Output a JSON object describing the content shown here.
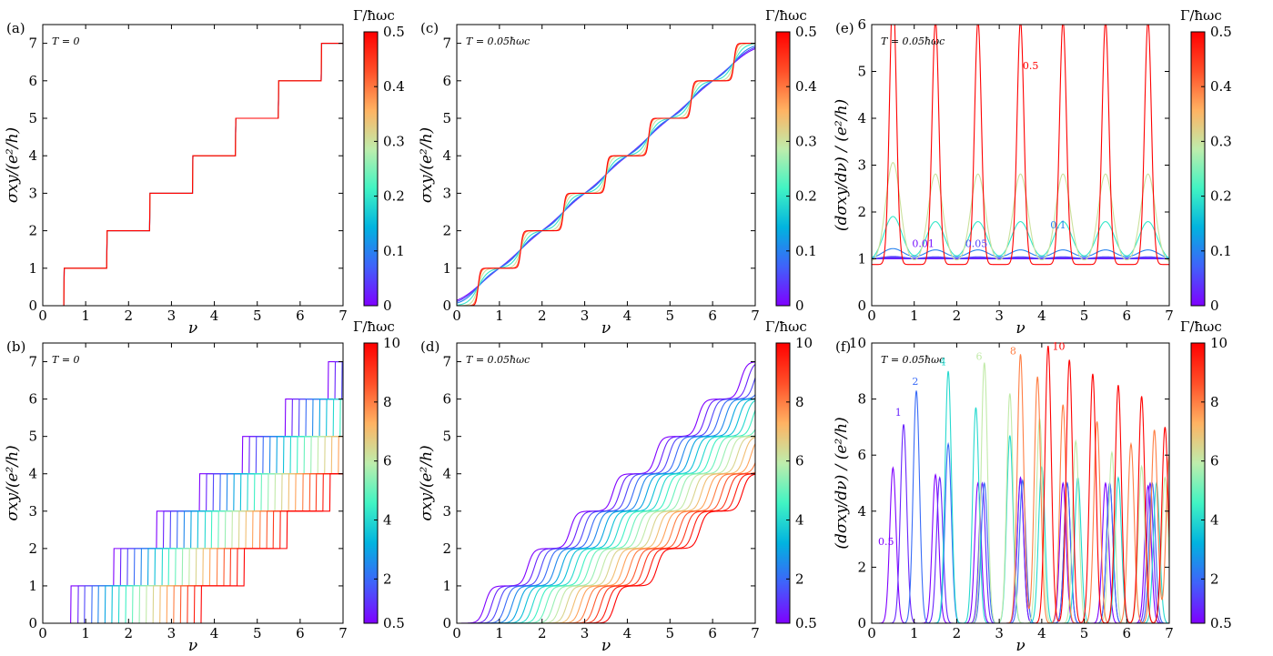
{
  "colormap": [
    "#7f00ff",
    "#4062fa",
    "#01b3df",
    "#41f4c3",
    "#beedac",
    "#ffb262",
    "#ff4f28",
    "#ff0000"
  ],
  "panels": [
    {
      "id": "a",
      "label": "(a)",
      "condition": "T = 0",
      "ylabel": "σxy/(e²/h)",
      "xlabel": "ν",
      "kind": "sigma",
      "temperature": 0,
      "gamma_values": [
        0.01,
        0.05,
        0.1,
        0.2,
        0.3,
        0.4,
        0.5
      ],
      "xlim": [
        0,
        7
      ],
      "ylim": [
        0,
        7.5
      ],
      "xticks": [
        0,
        1,
        2,
        3,
        4,
        5,
        6,
        7
      ],
      "yticks": [
        0,
        1,
        2,
        3,
        4,
        5,
        6,
        7
      ],
      "colorbar": {
        "title": "Γ/ħωc",
        "min": 0,
        "max": 0.5,
        "ticks": [
          "0",
          "0.1",
          "0.2",
          "0.3",
          "0.4",
          "0.5"
        ]
      }
    },
    {
      "id": "c",
      "label": "(c)",
      "condition": "T = 0.05ħωc",
      "ylabel": "σxy/(e²/h)",
      "xlabel": "ν",
      "kind": "sigma",
      "temperature": 0.05,
      "gamma_values": [
        0.01,
        0.05,
        0.1,
        0.2,
        0.3,
        0.4,
        0.5
      ],
      "xlim": [
        0,
        7
      ],
      "ylim": [
        0,
        7.5
      ],
      "xticks": [
        0,
        1,
        2,
        3,
        4,
        5,
        6,
        7
      ],
      "yticks": [
        0,
        1,
        2,
        3,
        4,
        5,
        6,
        7
      ],
      "colorbar": {
        "title": "Γ/ħωc",
        "min": 0,
        "max": 0.5,
        "ticks": [
          "0",
          "0.1",
          "0.2",
          "0.3",
          "0.4",
          "0.5"
        ]
      }
    },
    {
      "id": "e",
      "label": "(e)",
      "condition": "T = 0.05ħωc",
      "ylabel": "(dσxy/dν) / (e²/h)",
      "xlabel": "ν",
      "kind": "deriv",
      "temperature": 0.05,
      "gamma_values": [
        0.01,
        0.02,
        0.03,
        0.04,
        0.05,
        0.1,
        0.2,
        0.3,
        0.5
      ],
      "xlim": [
        0,
        7
      ],
      "ylim": [
        0,
        6
      ],
      "xticks": [
        0,
        1,
        2,
        3,
        4,
        5,
        6,
        7
      ],
      "yticks": [
        0,
        1,
        2,
        3,
        4,
        5,
        6
      ],
      "annotations": [
        "0.5",
        "0.1",
        "0.05",
        "0.01"
      ],
      "colorbar": {
        "title": "Γ/ħωc",
        "min": 0,
        "max": 0.5,
        "ticks": [
          "0",
          "0.1",
          "0.2",
          "0.3",
          "0.4",
          "0.5"
        ]
      }
    },
    {
      "id": "b",
      "label": "(b)",
      "condition": "T = 0",
      "ylabel": "σxy/(e²/h)",
      "xlabel": "ν",
      "kind": "sigma",
      "temperature": 0,
      "gamma_values": [
        0.5,
        1,
        1.5,
        2,
        2.5,
        3,
        3.5,
        4,
        4.5,
        5,
        5.5,
        6,
        6.5,
        7,
        7.5,
        8,
        8.5,
        9,
        9.5,
        10
      ],
      "xlim": [
        0,
        7
      ],
      "ylim": [
        0,
        7.5
      ],
      "xticks": [
        0,
        1,
        2,
        3,
        4,
        5,
        6,
        7
      ],
      "yticks": [
        0,
        1,
        2,
        3,
        4,
        5,
        6,
        7
      ],
      "colorbar": {
        "title": "Γ/ħωc",
        "min": 0.5,
        "max": 10,
        "ticks": [
          "0.5",
          "2",
          "4",
          "6",
          "8",
          "10"
        ]
      }
    },
    {
      "id": "d",
      "label": "(d)",
      "condition": "T = 0.05ħωc",
      "ylabel": "σxy/(e²/h)",
      "xlabel": "ν",
      "kind": "sigma",
      "temperature": 0.05,
      "gamma_values": [
        0.5,
        1,
        1.5,
        2,
        2.5,
        3,
        3.5,
        4,
        4.5,
        5,
        5.5,
        6,
        6.5,
        7,
        7.5,
        8,
        8.5,
        9,
        9.5,
        10
      ],
      "xlim": [
        0,
        7
      ],
      "ylim": [
        0,
        7.5
      ],
      "xticks": [
        0,
        1,
        2,
        3,
        4,
        5,
        6,
        7
      ],
      "yticks": [
        0,
        1,
        2,
        3,
        4,
        5,
        6,
        7
      ],
      "colorbar": {
        "title": "Γ/ħωc",
        "min": 0.5,
        "max": 10,
        "ticks": [
          "0.5",
          "2",
          "4",
          "6",
          "8",
          "10"
        ]
      }
    },
    {
      "id": "f",
      "label": "(f)",
      "condition": "T = 0.05ħωc",
      "ylabel": "(dσxy/dν) / (e²/h)",
      "xlabel": "ν",
      "kind": "deriv",
      "temperature": 0.05,
      "gamma_values": [
        0.5,
        1,
        2,
        4,
        6,
        8,
        10
      ],
      "xlim": [
        0,
        7
      ],
      "ylim": [
        0,
        10
      ],
      "xticks": [
        0,
        1,
        2,
        3,
        4,
        5,
        6,
        7
      ],
      "yticks": [
        0,
        2,
        4,
        6,
        8,
        10
      ],
      "annotations": [
        "0.5",
        "1",
        "2",
        "4",
        "6",
        "8",
        "10"
      ],
      "colorbar": {
        "title": "Γ/ħωc",
        "min": 0.5,
        "max": 10,
        "ticks": [
          "0.5",
          "2",
          "4",
          "6",
          "8",
          "10"
        ]
      }
    }
  ]
}
